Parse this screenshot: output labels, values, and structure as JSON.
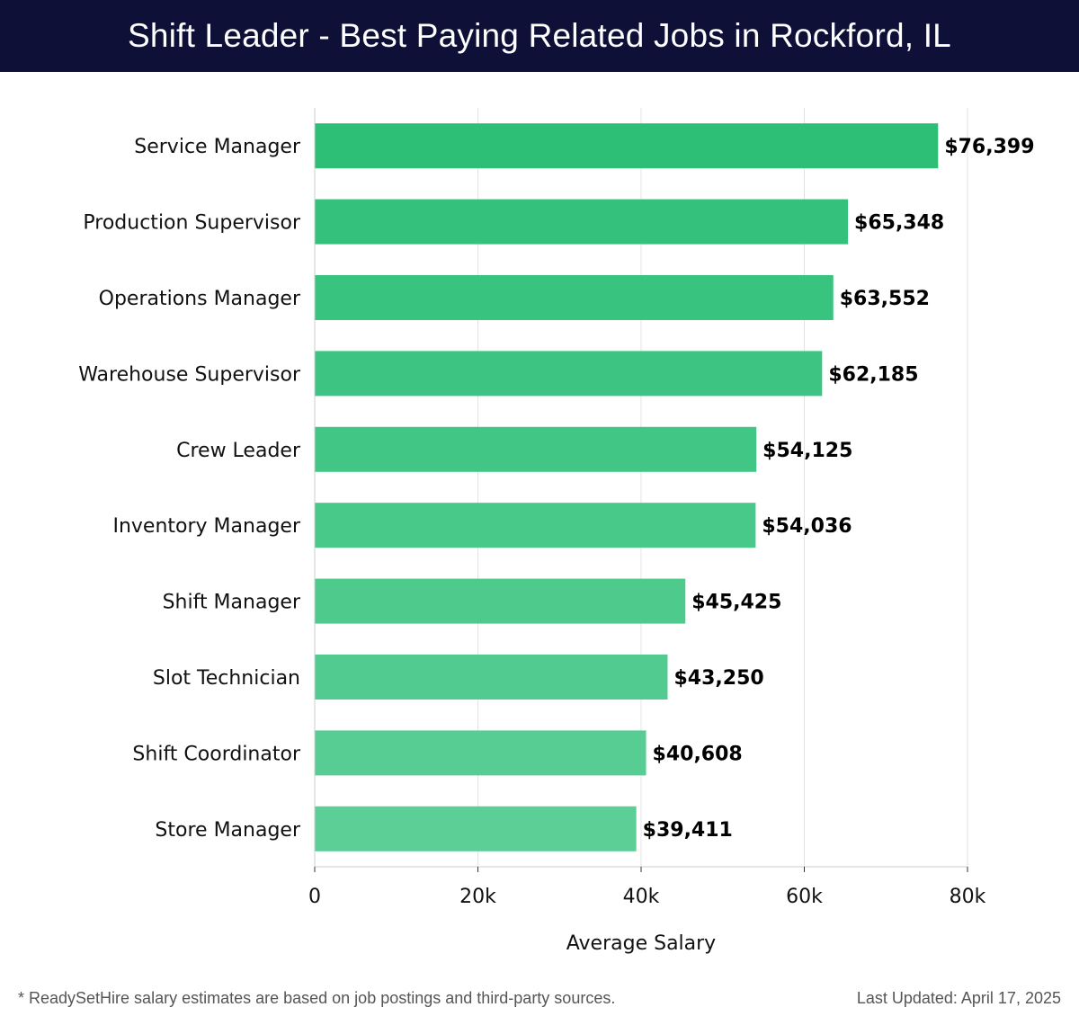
{
  "header": {
    "title": "Shift Leader - Best Paying Related Jobs in Rockford, IL"
  },
  "footer": {
    "note": "* ReadySetHire salary estimates are based on job postings and third-party sources.",
    "updated": "Last Updated: April 17, 2025"
  },
  "chart_data": {
    "type": "bar",
    "orientation": "horizontal",
    "title": "Shift Leader - Best Paying Related Jobs in Rockford, IL",
    "xlabel": "Average Salary",
    "ylabel": "",
    "categories": [
      "Service Manager",
      "Production Supervisor",
      "Operations Manager",
      "Warehouse Supervisor",
      "Crew Leader",
      "Inventory Manager",
      "Shift Manager",
      "Slot Technician",
      "Shift Coordinator",
      "Store Manager"
    ],
    "values": [
      76399,
      65348,
      63552,
      62185,
      54125,
      54036,
      45425,
      43250,
      40608,
      39411
    ],
    "value_labels": [
      "$76,399",
      "$65,348",
      "$63,552",
      "$62,185",
      "$54,125",
      "$54,036",
      "$45,425",
      "$43,250",
      "$40,608",
      "$39,411"
    ],
    "xlim": [
      0,
      80000
    ],
    "xticks": [
      0,
      20000,
      40000,
      60000,
      80000
    ],
    "xtick_labels": [
      "0",
      "20k",
      "40k",
      "60k",
      "80k"
    ],
    "grid": true,
    "legend": "none",
    "colors": {
      "bar_top": "#2ebf77",
      "bar_bottom": "#5ccf97",
      "grid": "#e3e3e3"
    }
  }
}
